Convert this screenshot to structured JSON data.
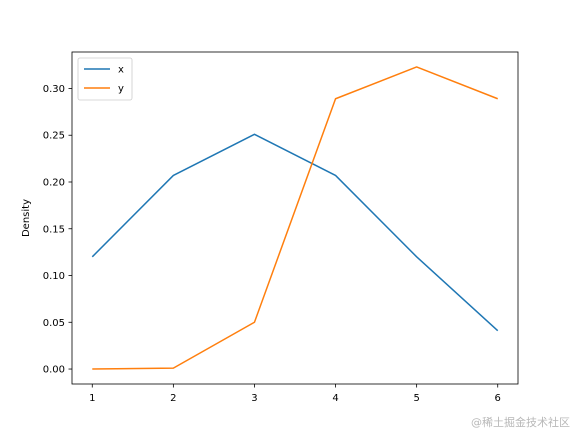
{
  "chart_data": {
    "type": "line",
    "title": "",
    "xlabel": "",
    "ylabel": "Density",
    "xlim": [
      0.75,
      6.25
    ],
    "ylim": [
      -0.016,
      0.339
    ],
    "x_ticks": [
      1,
      2,
      3,
      4,
      5,
      6
    ],
    "y_ticks": [
      0.0,
      0.05,
      0.1,
      0.15,
      0.2,
      0.25,
      0.3
    ],
    "y_tick_labels": [
      "0.00",
      "0.05",
      "0.10",
      "0.15",
      "0.20",
      "0.25",
      "0.30"
    ],
    "x": [
      1,
      2,
      3,
      4,
      5,
      6
    ],
    "series": [
      {
        "name": "x",
        "color": "#1f77b4",
        "values": [
          0.12,
          0.207,
          0.251,
          0.207,
          0.12,
          0.041
        ]
      },
      {
        "name": "y",
        "color": "#ff7f0e",
        "values": [
          0.0,
          0.001,
          0.05,
          0.289,
          0.323,
          0.289
        ]
      }
    ],
    "grid": false,
    "legend_placement": "top-left"
  },
  "watermark": "@稀土掘金技术社区"
}
